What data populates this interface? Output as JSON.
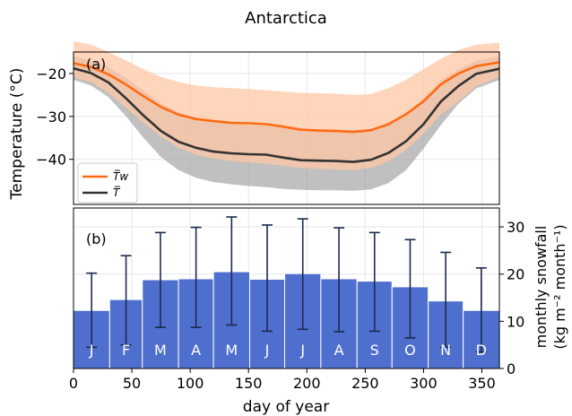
{
  "chart_data": [
    {
      "type": "line",
      "panel_label": "(a)",
      "title": "Antarctica",
      "ylabel": "Temperature (°C)",
      "xlabel": "",
      "xlim": [
        0,
        365
      ],
      "ylim": [
        -50.5,
        -15
      ],
      "yticks": [
        -20,
        -30,
        -40
      ],
      "ytick_labels": [
        "−20",
        "−30",
        "−40"
      ],
      "grid": true,
      "legend": {
        "placement": "center-left",
        "entries": [
          {
            "label": "T̅w",
            "series": "Tw",
            "color": "#ff6a13"
          },
          {
            "label": "T̅",
            "series": "T",
            "color": "#333333"
          }
        ]
      },
      "x": [
        0,
        15,
        30,
        45,
        60,
        75,
        90,
        105,
        120,
        135,
        150,
        165,
        180,
        195,
        210,
        225,
        240,
        255,
        270,
        285,
        300,
        315,
        330,
        345,
        365
      ],
      "series": [
        {
          "name": "Tw",
          "color": "#ff6a13",
          "band_color": "#ffc7a6",
          "values": [
            -17.6,
            -18.5,
            -20.2,
            -22.6,
            -25.3,
            -27.8,
            -29.6,
            -30.6,
            -31.1,
            -31.5,
            -31.6,
            -31.8,
            -32.4,
            -33.1,
            -33.3,
            -33.4,
            -33.6,
            -33.2,
            -31.8,
            -29.5,
            -26.5,
            -22.5,
            -20.0,
            -18.3,
            -17.4
          ],
          "band_upper": [
            -12.5,
            -13.3,
            -15.0,
            -17.0,
            -19.0,
            -20.8,
            -22.0,
            -22.8,
            -23.2,
            -23.4,
            -23.6,
            -23.9,
            -24.2,
            -24.5,
            -24.6,
            -24.7,
            -25.0,
            -24.8,
            -23.4,
            -21.5,
            -19.0,
            -16.5,
            -14.5,
            -13.3,
            -12.8
          ],
          "band_lower": [
            -21.0,
            -22.0,
            -24.5,
            -28.0,
            -31.5,
            -34.8,
            -37.3,
            -38.9,
            -39.8,
            -40.4,
            -40.7,
            -41.0,
            -41.5,
            -42.0,
            -42.2,
            -42.4,
            -42.5,
            -42.0,
            -40.5,
            -37.8,
            -34.0,
            -29.5,
            -26.5,
            -23.0,
            -20.8
          ]
        },
        {
          "name": "T",
          "color": "#333333",
          "band_color": "#9e9e9e",
          "values": [
            -18.8,
            -19.9,
            -22.1,
            -25.8,
            -29.8,
            -33.4,
            -35.9,
            -37.3,
            -38.2,
            -38.6,
            -38.8,
            -38.9,
            -39.6,
            -40.2,
            -40.3,
            -40.4,
            -40.6,
            -40.1,
            -38.5,
            -35.8,
            -31.8,
            -26.5,
            -22.9,
            -20.1,
            -18.9
          ],
          "band_upper": [
            -16.0,
            -17.0,
            -18.5,
            -21.0,
            -24.0,
            -27.0,
            -29.0,
            -30.5,
            -31.3,
            -31.7,
            -32.0,
            -32.2,
            -32.6,
            -33.2,
            -33.4,
            -33.5,
            -33.8,
            -33.3,
            -31.8,
            -29.4,
            -25.8,
            -21.5,
            -19.0,
            -17.0,
            -16.0
          ],
          "band_lower": [
            -21.5,
            -22.8,
            -25.5,
            -30.0,
            -35.0,
            -39.5,
            -42.5,
            -44.3,
            -45.3,
            -45.8,
            -46.2,
            -46.5,
            -46.9,
            -47.1,
            -47.2,
            -47.2,
            -47.3,
            -47.0,
            -45.5,
            -42.5,
            -37.5,
            -32.0,
            -27.0,
            -23.5,
            -21.5
          ]
        }
      ]
    },
    {
      "type": "bar",
      "panel_label": "(b)",
      "xlabel": "day of year",
      "ylabel_line1": "monthly snowfall",
      "ylabel_line2": "(kg m⁻² month⁻¹)",
      "xlim": [
        0,
        365
      ],
      "ylim": [
        0,
        34
      ],
      "yticks": [
        0,
        10,
        20,
        30
      ],
      "xticks": [
        0,
        50,
        100,
        150,
        200,
        250,
        300,
        350
      ],
      "bar_color": "#4f6fce",
      "errorbar_color": "#1c2a4f",
      "categories": [
        "J",
        "F",
        "M",
        "A",
        "M",
        "J",
        "J",
        "A",
        "S",
        "O",
        "N",
        "D"
      ],
      "month_starts": [
        0,
        31,
        59,
        90,
        120,
        151,
        181,
        212,
        243,
        273,
        304,
        334,
        365
      ],
      "values": [
        12.3,
        14.6,
        18.8,
        19.0,
        20.5,
        18.9,
        20.1,
        19.0,
        18.5,
        17.3,
        14.3,
        12.3
      ],
      "error_low": [
        4.5,
        5.0,
        8.7,
        8.7,
        9.2,
        7.9,
        8.3,
        7.8,
        7.9,
        6.5,
        4.5,
        3.5
      ],
      "error_high": [
        20.2,
        23.9,
        28.8,
        29.9,
        32.1,
        30.4,
        31.7,
        29.8,
        28.8,
        27.3,
        24.6,
        21.3
      ]
    }
  ]
}
